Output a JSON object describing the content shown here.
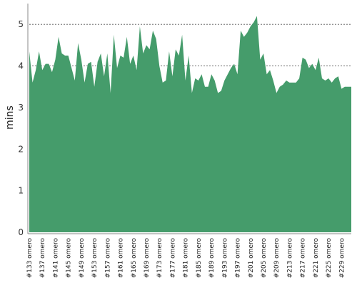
{
  "colors": {
    "area_fill": "#459c6b",
    "grid": "#555555",
    "axis": "#888888"
  },
  "chart_data": {
    "type": "area",
    "title": "",
    "xlabel": "",
    "ylabel": "mins",
    "ylim": [
      0,
      5.5
    ],
    "yticks": [
      0,
      1,
      2,
      3,
      4,
      5
    ],
    "grid": "horizontal dashed",
    "legend": "none",
    "x_tick_labels": [
      "#133 omero",
      "#137 omero",
      "#141 omero",
      "#145 omero",
      "#149 omero",
      "#153 omero",
      "#157 omero",
      "#161 omero",
      "#165 omero",
      "#169 omero",
      "#173 omero",
      "#177 omero",
      "#181 omero",
      "#185 omero",
      "#189 omero",
      "#193 omero",
      "#197 omero",
      "#201 omero",
      "#205 omero",
      "#209 omero",
      "#213 omero",
      "#217 omero",
      "#221 omero",
      "#225 omero",
      "#229 omero"
    ],
    "series": [
      {
        "x": [
          133,
          134,
          135,
          136,
          137,
          138,
          139,
          140,
          141,
          142,
          143,
          144,
          145,
          146,
          147,
          148,
          149,
          150,
          151,
          152,
          153,
          154,
          155,
          156,
          157,
          158,
          159,
          160,
          161,
          162,
          163,
          164,
          165,
          166,
          167,
          168,
          169,
          170,
          171,
          172,
          173,
          174,
          175,
          176,
          177,
          178,
          179,
          180,
          181,
          182,
          183,
          184,
          185,
          186,
          187,
          188,
          189,
          190,
          191,
          192,
          193,
          194,
          195,
          196,
          197,
          198,
          199,
          200,
          201,
          202,
          203,
          204,
          205,
          206,
          207,
          208,
          209,
          210,
          211,
          212,
          213,
          214,
          215,
          216,
          217,
          218,
          219,
          220,
          221,
          222,
          223,
          224,
          225,
          226,
          227,
          228,
          229,
          230,
          231,
          232
        ],
        "values": [
          4.35,
          3.6,
          3.9,
          4.35,
          3.9,
          4.05,
          4.05,
          3.85,
          4.15,
          4.7,
          4.3,
          4.25,
          4.25,
          3.95,
          3.65,
          4.55,
          4.15,
          3.6,
          4.05,
          4.1,
          3.5,
          4.1,
          4.3,
          3.75,
          4.3,
          3.35,
          4.75,
          3.95,
          4.25,
          4.2,
          4.7,
          4.05,
          4.25,
          3.9,
          4.95,
          4.3,
          4.5,
          4.4,
          4.85,
          4.65,
          4.0,
          3.6,
          3.65,
          4.35,
          3.75,
          4.4,
          4.25,
          4.75,
          3.65,
          4.25,
          3.35,
          3.7,
          3.65,
          3.8,
          3.5,
          3.5,
          3.8,
          3.65,
          3.35,
          3.4,
          3.65,
          3.8,
          3.95,
          4.05,
          3.8,
          4.85,
          4.7,
          4.8,
          4.95,
          5.05,
          5.2,
          4.15,
          4.3,
          3.8,
          3.9,
          3.65,
          3.35,
          3.5,
          3.55,
          3.65,
          3.6,
          3.6,
          3.6,
          3.7,
          4.2,
          4.15,
          3.95,
          4.05,
          3.9,
          4.2,
          3.7,
          3.65,
          3.7,
          3.6,
          3.7,
          3.75,
          3.45,
          3.5,
          3.5,
          3.5
        ]
      }
    ]
  }
}
